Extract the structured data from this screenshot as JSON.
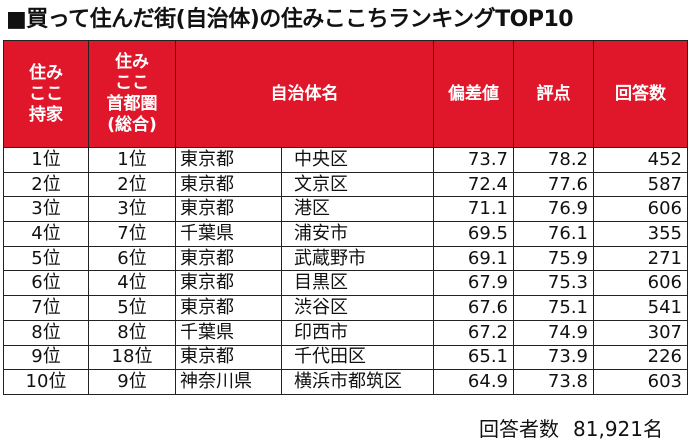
{
  "title": "■買って住んだ街(自治体)の住みここちランキングTOP10",
  "headers": {
    "rank_home": "住み\nここ\n持家",
    "rank_metro": "住み\nここ\n首都圏\n(総合)",
    "municipality": "自治体名",
    "deviation": "偏差値",
    "score": "評点",
    "responses": "回答数"
  },
  "rows": [
    {
      "rank_home": "1位",
      "rank_metro": "1位",
      "pref": "東京都",
      "city": "中央区",
      "deviation": "73.7",
      "score": "78.2",
      "responses": "452"
    },
    {
      "rank_home": "2位",
      "rank_metro": "2位",
      "pref": "東京都",
      "city": "文京区",
      "deviation": "72.4",
      "score": "77.6",
      "responses": "587"
    },
    {
      "rank_home": "3位",
      "rank_metro": "3位",
      "pref": "東京都",
      "city": "港区",
      "deviation": "71.1",
      "score": "76.9",
      "responses": "606"
    },
    {
      "rank_home": "4位",
      "rank_metro": "7位",
      "pref": "千葉県",
      "city": "浦安市",
      "deviation": "69.5",
      "score": "76.1",
      "responses": "355"
    },
    {
      "rank_home": "5位",
      "rank_metro": "6位",
      "pref": "東京都",
      "city": "武蔵野市",
      "deviation": "69.1",
      "score": "75.9",
      "responses": "271"
    },
    {
      "rank_home": "6位",
      "rank_metro": "4位",
      "pref": "東京都",
      "city": "目黒区",
      "deviation": "67.9",
      "score": "75.3",
      "responses": "606"
    },
    {
      "rank_home": "7位",
      "rank_metro": "5位",
      "pref": "東京都",
      "city": "渋谷区",
      "deviation": "67.6",
      "score": "75.1",
      "responses": "541"
    },
    {
      "rank_home": "8位",
      "rank_metro": "8位",
      "pref": "千葉県",
      "city": "印西市",
      "deviation": "67.2",
      "score": "74.9",
      "responses": "307"
    },
    {
      "rank_home": "9位",
      "rank_metro": "18位",
      "pref": "東京都",
      "city": "千代田区",
      "deviation": "65.1",
      "score": "73.9",
      "responses": "226"
    },
    {
      "rank_home": "10位",
      "rank_metro": "9位",
      "pref": "神奈川県",
      "city": "横浜市都筑区",
      "deviation": "64.9",
      "score": "73.8",
      "responses": "603"
    }
  ],
  "footer": {
    "label": "回答者数",
    "value": "81,921名"
  },
  "colors": {
    "header_bg": "#e0162b",
    "header_text": "#ffffff"
  }
}
